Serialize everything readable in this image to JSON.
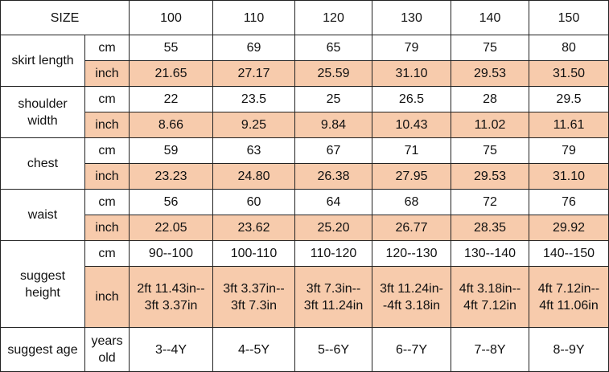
{
  "header": {
    "label": "SIZE",
    "sizes": [
      "100",
      "110",
      "120",
      "130",
      "140",
      "150"
    ]
  },
  "groups": [
    {
      "name": "skirt length",
      "rows": [
        {
          "unit": "cm",
          "values": [
            "55",
            "69",
            "65",
            "79",
            "75",
            "80"
          ]
        },
        {
          "unit": "inch",
          "values": [
            "21.65",
            "27.17",
            "25.59",
            "31.10",
            "29.53",
            "31.50"
          ]
        }
      ]
    },
    {
      "name": "shoulder width",
      "rows": [
        {
          "unit": "cm",
          "values": [
            "22",
            "23.5",
            "25",
            "26.5",
            "28",
            "29.5"
          ]
        },
        {
          "unit": "inch",
          "values": [
            "8.66",
            "9.25",
            "9.84",
            "10.43",
            "11.02",
            "11.61"
          ]
        }
      ]
    },
    {
      "name": "chest",
      "rows": [
        {
          "unit": "cm",
          "values": [
            "59",
            "63",
            "67",
            "71",
            "75",
            "79"
          ]
        },
        {
          "unit": "inch",
          "values": [
            "23.23",
            "24.80",
            "26.38",
            "27.95",
            "29.53",
            "31.10"
          ]
        }
      ]
    },
    {
      "name": "waist",
      "rows": [
        {
          "unit": "cm",
          "values": [
            "56",
            "60",
            "64",
            "68",
            "72",
            "76"
          ]
        },
        {
          "unit": "inch",
          "values": [
            "22.05",
            "23.62",
            "25.20",
            "26.77",
            "28.35",
            "29.92"
          ]
        }
      ]
    },
    {
      "name": "suggest height",
      "rows": [
        {
          "unit": "cm",
          "values": [
            "90--100",
            "100-110",
            "110-120",
            "120--130",
            "130--140",
            "140--150"
          ]
        },
        {
          "unit": "inch",
          "values": [
            [
              "2ft 11.43in--",
              "3ft 3.37in"
            ],
            [
              "3ft 3.37in--",
              "3ft 7.3in"
            ],
            [
              "3ft 7.3in--",
              "3ft 11.24in"
            ],
            [
              "3ft 11.24in-",
              "-4ft 3.18in"
            ],
            [
              "4ft 3.18in--",
              "4ft 7.12in"
            ],
            [
              "4ft 7.12in--",
              "4ft 11.06in"
            ]
          ]
        }
      ]
    },
    {
      "name": "suggest age",
      "rows": [
        {
          "unit": "years old",
          "values": [
            "3--4Y",
            "4--5Y",
            "5--6Y",
            "6--7Y",
            "7--8Y",
            "8--9Y"
          ]
        }
      ]
    }
  ]
}
